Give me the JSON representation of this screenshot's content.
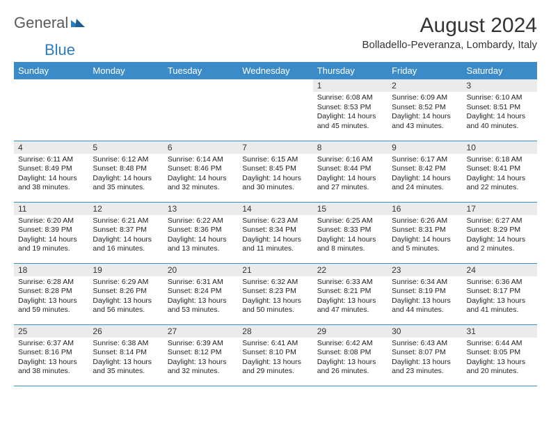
{
  "brand": {
    "part1": "General",
    "part2": "Blue"
  },
  "title": "August 2024",
  "location": "Bolladello-Peveranza, Lombardy, Italy",
  "colors": {
    "header_bg": "#3b8bc9",
    "header_text": "#ffffff",
    "daynum_bg": "#ebebeb",
    "border": "#3b8bc9",
    "logo_grey": "#5a5a5a",
    "logo_blue": "#2b7bbf"
  },
  "weekdays": [
    "Sunday",
    "Monday",
    "Tuesday",
    "Wednesday",
    "Thursday",
    "Friday",
    "Saturday"
  ],
  "weeks": [
    [
      {
        "empty": true
      },
      {
        "empty": true
      },
      {
        "empty": true
      },
      {
        "empty": true
      },
      {
        "day": "1",
        "sunrise": "Sunrise: 6:08 AM",
        "sunset": "Sunset: 8:53 PM",
        "daylight1": "Daylight: 14 hours",
        "daylight2": "and 45 minutes."
      },
      {
        "day": "2",
        "sunrise": "Sunrise: 6:09 AM",
        "sunset": "Sunset: 8:52 PM",
        "daylight1": "Daylight: 14 hours",
        "daylight2": "and 43 minutes."
      },
      {
        "day": "3",
        "sunrise": "Sunrise: 6:10 AM",
        "sunset": "Sunset: 8:51 PM",
        "daylight1": "Daylight: 14 hours",
        "daylight2": "and 40 minutes."
      }
    ],
    [
      {
        "day": "4",
        "sunrise": "Sunrise: 6:11 AM",
        "sunset": "Sunset: 8:49 PM",
        "daylight1": "Daylight: 14 hours",
        "daylight2": "and 38 minutes."
      },
      {
        "day": "5",
        "sunrise": "Sunrise: 6:12 AM",
        "sunset": "Sunset: 8:48 PM",
        "daylight1": "Daylight: 14 hours",
        "daylight2": "and 35 minutes."
      },
      {
        "day": "6",
        "sunrise": "Sunrise: 6:14 AM",
        "sunset": "Sunset: 8:46 PM",
        "daylight1": "Daylight: 14 hours",
        "daylight2": "and 32 minutes."
      },
      {
        "day": "7",
        "sunrise": "Sunrise: 6:15 AM",
        "sunset": "Sunset: 8:45 PM",
        "daylight1": "Daylight: 14 hours",
        "daylight2": "and 30 minutes."
      },
      {
        "day": "8",
        "sunrise": "Sunrise: 6:16 AM",
        "sunset": "Sunset: 8:44 PM",
        "daylight1": "Daylight: 14 hours",
        "daylight2": "and 27 minutes."
      },
      {
        "day": "9",
        "sunrise": "Sunrise: 6:17 AM",
        "sunset": "Sunset: 8:42 PM",
        "daylight1": "Daylight: 14 hours",
        "daylight2": "and 24 minutes."
      },
      {
        "day": "10",
        "sunrise": "Sunrise: 6:18 AM",
        "sunset": "Sunset: 8:41 PM",
        "daylight1": "Daylight: 14 hours",
        "daylight2": "and 22 minutes."
      }
    ],
    [
      {
        "day": "11",
        "sunrise": "Sunrise: 6:20 AM",
        "sunset": "Sunset: 8:39 PM",
        "daylight1": "Daylight: 14 hours",
        "daylight2": "and 19 minutes."
      },
      {
        "day": "12",
        "sunrise": "Sunrise: 6:21 AM",
        "sunset": "Sunset: 8:37 PM",
        "daylight1": "Daylight: 14 hours",
        "daylight2": "and 16 minutes."
      },
      {
        "day": "13",
        "sunrise": "Sunrise: 6:22 AM",
        "sunset": "Sunset: 8:36 PM",
        "daylight1": "Daylight: 14 hours",
        "daylight2": "and 13 minutes."
      },
      {
        "day": "14",
        "sunrise": "Sunrise: 6:23 AM",
        "sunset": "Sunset: 8:34 PM",
        "daylight1": "Daylight: 14 hours",
        "daylight2": "and 11 minutes."
      },
      {
        "day": "15",
        "sunrise": "Sunrise: 6:25 AM",
        "sunset": "Sunset: 8:33 PM",
        "daylight1": "Daylight: 14 hours",
        "daylight2": "and 8 minutes."
      },
      {
        "day": "16",
        "sunrise": "Sunrise: 6:26 AM",
        "sunset": "Sunset: 8:31 PM",
        "daylight1": "Daylight: 14 hours",
        "daylight2": "and 5 minutes."
      },
      {
        "day": "17",
        "sunrise": "Sunrise: 6:27 AM",
        "sunset": "Sunset: 8:29 PM",
        "daylight1": "Daylight: 14 hours",
        "daylight2": "and 2 minutes."
      }
    ],
    [
      {
        "day": "18",
        "sunrise": "Sunrise: 6:28 AM",
        "sunset": "Sunset: 8:28 PM",
        "daylight1": "Daylight: 13 hours",
        "daylight2": "and 59 minutes."
      },
      {
        "day": "19",
        "sunrise": "Sunrise: 6:29 AM",
        "sunset": "Sunset: 8:26 PM",
        "daylight1": "Daylight: 13 hours",
        "daylight2": "and 56 minutes."
      },
      {
        "day": "20",
        "sunrise": "Sunrise: 6:31 AM",
        "sunset": "Sunset: 8:24 PM",
        "daylight1": "Daylight: 13 hours",
        "daylight2": "and 53 minutes."
      },
      {
        "day": "21",
        "sunrise": "Sunrise: 6:32 AM",
        "sunset": "Sunset: 8:23 PM",
        "daylight1": "Daylight: 13 hours",
        "daylight2": "and 50 minutes."
      },
      {
        "day": "22",
        "sunrise": "Sunrise: 6:33 AM",
        "sunset": "Sunset: 8:21 PM",
        "daylight1": "Daylight: 13 hours",
        "daylight2": "and 47 minutes."
      },
      {
        "day": "23",
        "sunrise": "Sunrise: 6:34 AM",
        "sunset": "Sunset: 8:19 PM",
        "daylight1": "Daylight: 13 hours",
        "daylight2": "and 44 minutes."
      },
      {
        "day": "24",
        "sunrise": "Sunrise: 6:36 AM",
        "sunset": "Sunset: 8:17 PM",
        "daylight1": "Daylight: 13 hours",
        "daylight2": "and 41 minutes."
      }
    ],
    [
      {
        "day": "25",
        "sunrise": "Sunrise: 6:37 AM",
        "sunset": "Sunset: 8:16 PM",
        "daylight1": "Daylight: 13 hours",
        "daylight2": "and 38 minutes."
      },
      {
        "day": "26",
        "sunrise": "Sunrise: 6:38 AM",
        "sunset": "Sunset: 8:14 PM",
        "daylight1": "Daylight: 13 hours",
        "daylight2": "and 35 minutes."
      },
      {
        "day": "27",
        "sunrise": "Sunrise: 6:39 AM",
        "sunset": "Sunset: 8:12 PM",
        "daylight1": "Daylight: 13 hours",
        "daylight2": "and 32 minutes."
      },
      {
        "day": "28",
        "sunrise": "Sunrise: 6:41 AM",
        "sunset": "Sunset: 8:10 PM",
        "daylight1": "Daylight: 13 hours",
        "daylight2": "and 29 minutes."
      },
      {
        "day": "29",
        "sunrise": "Sunrise: 6:42 AM",
        "sunset": "Sunset: 8:08 PM",
        "daylight1": "Daylight: 13 hours",
        "daylight2": "and 26 minutes."
      },
      {
        "day": "30",
        "sunrise": "Sunrise: 6:43 AM",
        "sunset": "Sunset: 8:07 PM",
        "daylight1": "Daylight: 13 hours",
        "daylight2": "and 23 minutes."
      },
      {
        "day": "31",
        "sunrise": "Sunrise: 6:44 AM",
        "sunset": "Sunset: 8:05 PM",
        "daylight1": "Daylight: 13 hours",
        "daylight2": "and 20 minutes."
      }
    ]
  ]
}
